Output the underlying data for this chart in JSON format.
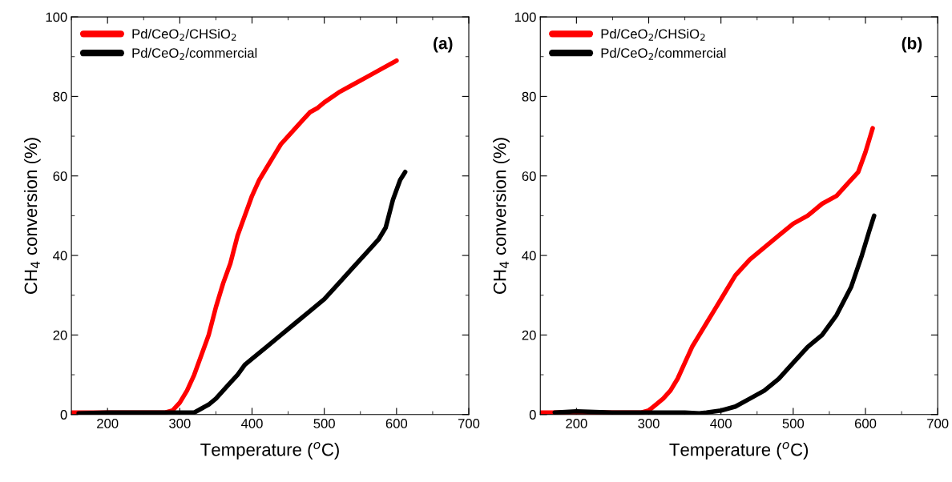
{
  "chart_data": [
    {
      "type": "line",
      "xlabel": "Temperature ($^{o}$C)",
      "ylabel": "CH$_{4}$ conversion (%)",
      "xlim": [
        150,
        700
      ],
      "ylim": [
        0,
        100
      ],
      "xticks": [
        200,
        300,
        400,
        500,
        600,
        700
      ],
      "yticks": [
        0,
        20,
        40,
        60,
        80,
        100
      ],
      "grid": false,
      "legend": "top left",
      "annotations": [
        "(a)"
      ],
      "series": [
        {
          "name": "Pd/CeO$_{2}$/CHSiO$_{2}$",
          "color": "#ff0000",
          "x": [
            150,
            280,
            290,
            300,
            310,
            320,
            330,
            340,
            350,
            360,
            370,
            380,
            390,
            400,
            410,
            420,
            430,
            440,
            450,
            460,
            470,
            480,
            490,
            500,
            520,
            540,
            560,
            580,
            600
          ],
          "values": [
            0.5,
            0.5,
            1,
            3,
            6,
            10,
            15,
            20,
            27,
            33,
            38,
            45,
            50,
            55,
            59,
            62,
            65,
            68,
            70,
            72,
            74,
            76,
            77,
            78.5,
            81,
            83,
            85,
            87,
            89
          ]
        },
        {
          "name": "Pd/CeO$_{2}$/commercial",
          "color": "#000000",
          "x": [
            160,
            200,
            250,
            300,
            320,
            330,
            340,
            350,
            360,
            370,
            380,
            390,
            400,
            420,
            440,
            460,
            480,
            500,
            520,
            540,
            560,
            575,
            585,
            595,
            605,
            612
          ],
          "values": [
            0.3,
            0.5,
            0.5,
            0.5,
            0.5,
            1.5,
            2.5,
            4,
            6,
            8,
            10,
            12.5,
            14,
            17,
            20,
            23,
            26,
            29,
            33,
            37,
            41,
            44,
            47,
            54,
            59,
            61
          ]
        }
      ]
    },
    {
      "type": "line",
      "xlabel": "Temperature ($^{o}$C)",
      "ylabel": "CH$_{4}$ conversion (%)",
      "xlim": [
        150,
        700
      ],
      "ylim": [
        0,
        100
      ],
      "xticks": [
        200,
        300,
        400,
        500,
        600,
        700
      ],
      "yticks": [
        0,
        20,
        40,
        60,
        80,
        100
      ],
      "grid": false,
      "legend": "top left",
      "annotations": [
        "(b)"
      ],
      "series": [
        {
          "name": "Pd/CeO$_{2}$/CHSiO$_{2}$",
          "color": "#ff0000",
          "x": [
            150,
            290,
            300,
            310,
            320,
            330,
            340,
            350,
            360,
            370,
            380,
            390,
            400,
            410,
            420,
            440,
            460,
            480,
            500,
            520,
            540,
            560,
            575,
            590,
            600,
            610
          ],
          "values": [
            0.5,
            0.5,
            1,
            2.5,
            4,
            6,
            9,
            13,
            17,
            20,
            23,
            26,
            29,
            32,
            35,
            39,
            42,
            45,
            48,
            50,
            53,
            55,
            58,
            61,
            66,
            72
          ]
        },
        {
          "name": "Pd/CeO$_{2}$/commercial",
          "color": "#000000",
          "x": [
            170,
            200,
            250,
            300,
            350,
            370,
            380,
            400,
            420,
            440,
            460,
            480,
            500,
            520,
            540,
            560,
            580,
            595,
            605,
            612
          ],
          "values": [
            0.5,
            0.8,
            0.5,
            0.5,
            0.5,
            0.3,
            0.5,
            1,
            2,
            4,
            6,
            9,
            13,
            17,
            20,
            25,
            32,
            40,
            46,
            50
          ]
        }
      ]
    }
  ]
}
